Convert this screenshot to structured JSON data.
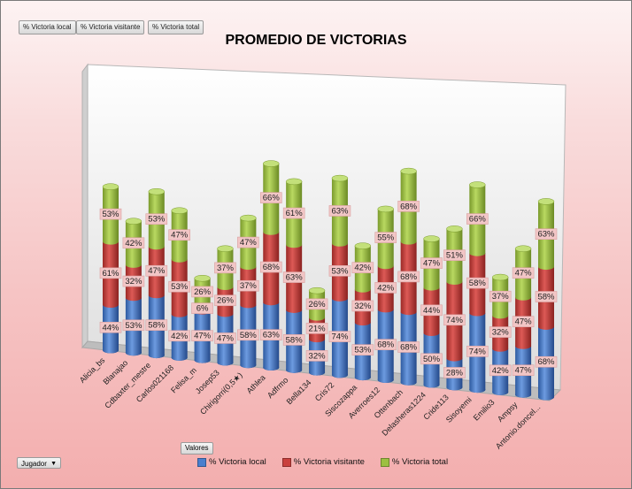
{
  "field_buttons": [
    "% Victoria local",
    "% Victoria visitante",
    "% Victoria total"
  ],
  "valores_button": "Valores",
  "filter_button": "Jugador",
  "colors": {
    "local": "#4a7fce",
    "visitante": "#c9403d",
    "total": "#9dc041"
  },
  "chart_data": {
    "type": "bar",
    "subtype": "3d-stacked-cylinder",
    "title": "PROMEDIO DE VICTORIAS",
    "categories": [
      "Alicia_bs",
      "Blanajao",
      "Cdbaxter_mestre",
      "Carlos021168",
      "Felisa_m",
      "Josep53",
      "Chirigorri(0,5★)",
      "Athlea",
      "Adfrmo",
      "Bella134",
      "Cris72",
      "Siscozappa",
      "Averroes12",
      "Ottenbach",
      "Delasheras1224",
      "Cride113",
      "Sisoyemi",
      "Emilio3",
      "Ampsy",
      "Antonio.doncel..."
    ],
    "series": [
      {
        "name": "% Victoria local",
        "values": [
          44,
          53,
          58,
          42,
          47,
          47,
          58,
          63,
          58,
          32,
          74,
          53,
          68,
          68,
          50,
          28,
          74,
          42,
          47,
          68
        ],
        "labels": [
          "44%",
          "53%",
          "58%",
          "42%",
          "47%",
          "47%",
          "58%",
          "63%",
          "58%",
          "32%",
          "74%",
          "53%",
          "68%",
          "68%",
          "50%",
          "28%",
          "74%",
          "42%",
          "47%",
          "68%"
        ]
      },
      {
        "name": "% Victoria visitante",
        "values": [
          61,
          32,
          47,
          53,
          6,
          26,
          37,
          68,
          63,
          21,
          53,
          32,
          42,
          68,
          44,
          74,
          58,
          32,
          47,
          58
        ],
        "labels": [
          "61%",
          "32%",
          "47%",
          "53%",
          "6%",
          "26%",
          "37%",
          "68%",
          "63%",
          "21%",
          "53%",
          "32%",
          "42%",
          "68%",
          "44%",
          "74%",
          "58%",
          "32%",
          "47%",
          "58%"
        ]
      },
      {
        "name": "% Victoria total",
        "values": [
          53,
          42,
          53,
          47,
          26,
          37,
          47,
          66,
          61,
          26,
          63,
          42,
          55,
          68,
          47,
          51,
          66,
          37,
          47,
          63
        ],
        "labels": [
          "53%",
          "42%",
          "53%",
          "47%",
          "26%",
          "37%",
          "47%",
          "66%",
          "61%",
          "26%",
          "63%",
          "42%",
          "55%",
          "68%",
          "47%",
          "51%",
          "66%",
          "37%",
          "47%",
          "63%"
        ]
      }
    ],
    "legend_position": "bottom"
  }
}
